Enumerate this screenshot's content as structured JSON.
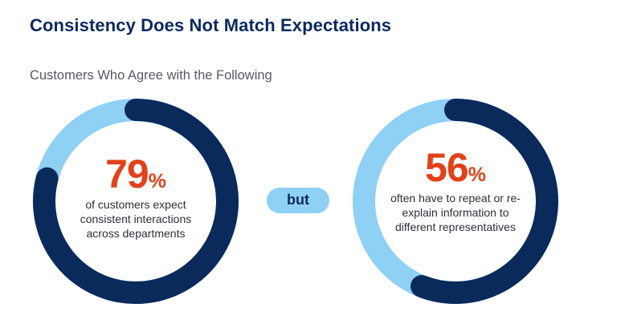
{
  "header": {
    "title": "Consistency Does Not Match Expectations",
    "subtitle": "Customers Who Agree with the Following"
  },
  "colors": {
    "accent": "#e2411a",
    "ring_filled": "#0b2a5c",
    "ring_track": "#8fd0f5",
    "title": "#0b2a5c"
  },
  "connector": {
    "label": "but"
  },
  "chart_data": [
    {
      "type": "pie",
      "subtype": "donut",
      "value": 79,
      "remainder": 21,
      "unit": "%",
      "value_label": "79",
      "unit_label": "%",
      "description": "of customers expect consistent interactions across departments"
    },
    {
      "type": "pie",
      "subtype": "donut",
      "value": 56,
      "remainder": 44,
      "unit": "%",
      "value_label": "56",
      "unit_label": "%",
      "description": "often have to repeat or re-explain information to different representatives"
    }
  ]
}
